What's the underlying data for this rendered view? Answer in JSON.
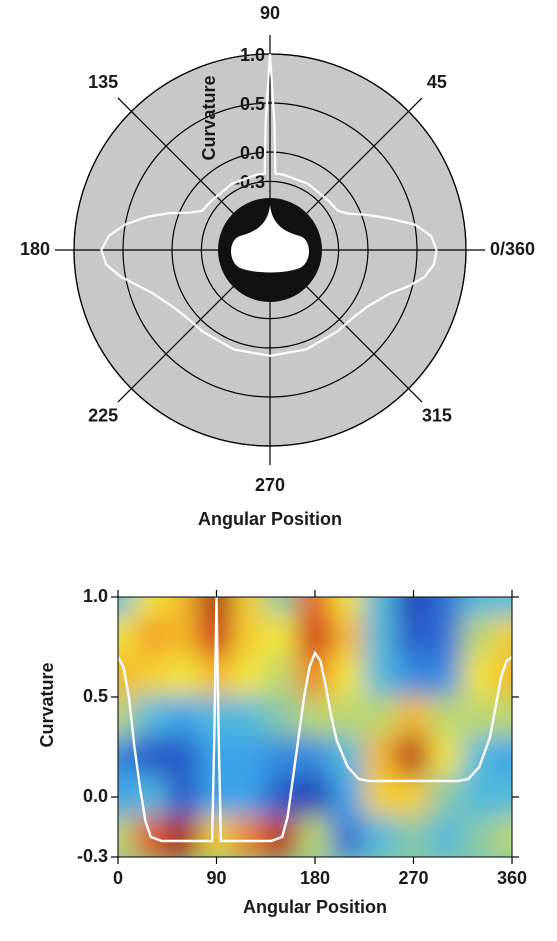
{
  "chart_data": [
    {
      "type": "polar",
      "xlabel": "Angular Position",
      "ylabel": "Curvature",
      "angular_ticks": [
        {
          "value": 0,
          "label": "0/360"
        },
        45,
        90,
        135,
        180,
        225,
        270,
        315
      ],
      "ylim": [
        -1.0,
        1.0
      ],
      "yticks": [
        {
          "value": -0.3,
          "label": "-0.3"
        },
        {
          "value": 0,
          "label": "0.0"
        },
        {
          "value": 0.5,
          "label": "0.5"
        },
        {
          "value": 1,
          "label": "1.0"
        }
      ],
      "line_color": "#ffffff",
      "x": [
        0,
        5,
        10,
        15,
        20,
        25,
        30,
        40,
        60,
        80,
        86,
        88,
        90,
        92,
        94,
        100,
        120,
        140,
        150,
        155,
        160,
        165,
        170,
        175,
        180,
        185,
        190,
        195,
        200,
        210,
        220,
        230,
        250,
        270,
        290,
        310,
        320,
        330,
        340,
        345,
        350,
        355,
        360
      ],
      "values": [
        0.7,
        0.65,
        0.5,
        0.25,
        0.05,
        -0.12,
        -0.2,
        -0.22,
        -0.22,
        -0.22,
        -0.22,
        0.3,
        1.0,
        0.3,
        -0.22,
        -0.22,
        -0.22,
        -0.22,
        -0.2,
        -0.1,
        0.1,
        0.3,
        0.5,
        0.65,
        0.72,
        0.68,
        0.55,
        0.4,
        0.28,
        0.15,
        0.09,
        0.08,
        0.08,
        0.08,
        0.08,
        0.08,
        0.09,
        0.15,
        0.3,
        0.45,
        0.6,
        0.68,
        0.7
      ]
    },
    {
      "type": "heatmap",
      "xlabel": "Angular Position",
      "ylabel": "Curvature",
      "xlim": [
        0,
        360
      ],
      "ylim": [
        -0.3,
        1.0
      ],
      "xticks": [
        0,
        90,
        180,
        270,
        360
      ],
      "yticks": [
        {
          "value": -0.3,
          "label": "-0.3"
        },
        {
          "value": 0,
          "label": "0.0"
        },
        {
          "value": 0.5,
          "label": "0.5"
        },
        {
          "value": 1,
          "label": "1.0"
        }
      ],
      "heatmap": {
        "x": [
          0,
          30,
          60,
          90,
          120,
          150,
          180,
          210,
          240,
          270,
          300,
          330,
          360
        ],
        "y": [
          1.0,
          0.8,
          0.6,
          0.4,
          0.2,
          0.0,
          -0.2
        ],
        "zlim": [
          0,
          1
        ],
        "colors": [
          "#14148c",
          "#2a5fd0",
          "#3fb4ee",
          "#f2e63a",
          "#f59a23",
          "#d3201b",
          "#8e1010"
        ],
        "z": [
          [
            0.35,
            0.5,
            0.6,
            0.95,
            0.55,
            0.4,
            0.75,
            0.5,
            0.35,
            0.1,
            0.2,
            0.35,
            0.35
          ],
          [
            0.5,
            0.65,
            0.6,
            0.85,
            0.55,
            0.5,
            0.85,
            0.6,
            0.35,
            0.15,
            0.2,
            0.45,
            0.55
          ],
          [
            0.6,
            0.55,
            0.5,
            0.6,
            0.5,
            0.45,
            0.7,
            0.5,
            0.35,
            0.25,
            0.25,
            0.5,
            0.6
          ],
          [
            0.45,
            0.35,
            0.3,
            0.35,
            0.35,
            0.4,
            0.45,
            0.45,
            0.45,
            0.6,
            0.45,
            0.45,
            0.45
          ],
          [
            0.25,
            0.15,
            0.15,
            0.3,
            0.3,
            0.25,
            0.25,
            0.35,
            0.6,
            0.9,
            0.5,
            0.35,
            0.3
          ],
          [
            0.3,
            0.35,
            0.15,
            0.3,
            0.3,
            0.15,
            0.1,
            0.3,
            0.55,
            0.55,
            0.4,
            0.35,
            0.35
          ],
          [
            0.45,
            0.75,
            0.95,
            0.55,
            0.7,
            0.9,
            0.45,
            0.2,
            0.35,
            0.4,
            0.35,
            0.4,
            0.45
          ]
        ]
      },
      "line_color": "#ffffff",
      "x": [
        0,
        5,
        10,
        15,
        20,
        25,
        30,
        40,
        60,
        80,
        86,
        88,
        90,
        92,
        94,
        100,
        120,
        140,
        150,
        155,
        160,
        165,
        170,
        175,
        180,
        185,
        190,
        195,
        200,
        210,
        220,
        230,
        250,
        270,
        290,
        310,
        320,
        330,
        340,
        345,
        350,
        355,
        360
      ],
      "values": [
        0.7,
        0.65,
        0.5,
        0.25,
        0.05,
        -0.12,
        -0.2,
        -0.22,
        -0.22,
        -0.22,
        -0.22,
        0.3,
        1.0,
        0.3,
        -0.22,
        -0.22,
        -0.22,
        -0.22,
        -0.2,
        -0.1,
        0.1,
        0.3,
        0.5,
        0.65,
        0.72,
        0.68,
        0.55,
        0.4,
        0.28,
        0.15,
        0.09,
        0.08,
        0.08,
        0.08,
        0.08,
        0.08,
        0.09,
        0.15,
        0.3,
        0.45,
        0.6,
        0.68,
        0.7
      ]
    }
  ]
}
